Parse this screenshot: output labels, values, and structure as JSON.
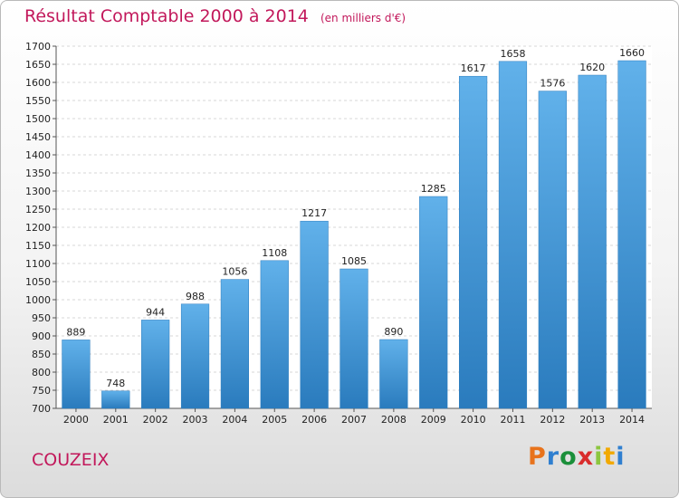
{
  "chart_data": {
    "type": "bar",
    "title": "Résultat Comptable 2000 à 2014",
    "subtitle": "(en milliers d'€)",
    "categories": [
      "2000",
      "2001",
      "2002",
      "2003",
      "2004",
      "2005",
      "2006",
      "2007",
      "2008",
      "2009",
      "2010",
      "2011",
      "2012",
      "2013",
      "2014"
    ],
    "values": [
      889,
      748,
      944,
      988,
      1056,
      1108,
      1217,
      1085,
      890,
      1285,
      1617,
      1658,
      1576,
      1620,
      1660
    ],
    "ylim": [
      700,
      1700
    ],
    "ytick_step": 50,
    "grid": true,
    "legend": "none",
    "bar_color_top": "#61b1ea",
    "bar_color_bottom": "#2a7bbd"
  },
  "commune": "COUZEIX",
  "logo": {
    "letters": [
      "P",
      "r",
      "o",
      "x",
      "i",
      "t",
      "i"
    ]
  },
  "colors": {
    "accent": "#c2185b",
    "grid": "#d7d7d7"
  }
}
